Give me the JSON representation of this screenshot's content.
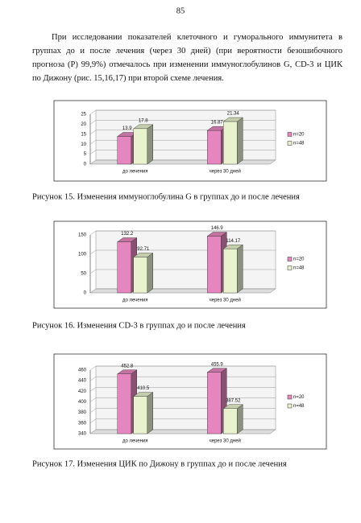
{
  "page_number": "85",
  "paragraph": "При исследовании показателей клеточного и гуморального иммунитета в группах до и после лечения (через 30 дней) (при вероятности безошибочного прогноза (P) 99,9%) отмечалось при изменении иммуноглобулинов G, CD-3 и ЦИК по Дижону (рис. 15,16,17) при второй схеме лечения.",
  "chart_data": [
    {
      "type": "bar",
      "caption": "Рисунок 15. Изменения иммуноглобулина G в группах до и после лечения",
      "categories": [
        "до лечения",
        "через 30 дней"
      ],
      "series": [
        {
          "name": "n=20",
          "color": "#e586be",
          "values": [
            13.9,
            16.87
          ]
        },
        {
          "name": "n=48",
          "color": "#e8f2cc",
          "values": [
            17.8,
            21.34
          ]
        }
      ],
      "ylim": [
        0,
        25
      ],
      "yticks": [
        0,
        5,
        10,
        15,
        20,
        25
      ],
      "grid": true
    },
    {
      "type": "bar",
      "caption": "Рисунок 16. Изменения CD-3 в группах до и после лечения",
      "categories": [
        "до лечения",
        "через 30 дней"
      ],
      "series": [
        {
          "name": "n=20",
          "color": "#e586be",
          "values": [
            132.2,
            146.9
          ]
        },
        {
          "name": "n=48",
          "color": "#e8f2cc",
          "values": [
            92.71,
            114.17
          ]
        }
      ],
      "ylim": [
        0,
        150
      ],
      "yticks": [
        0,
        50,
        100,
        150
      ],
      "grid": true
    },
    {
      "type": "bar",
      "caption": "Рисунок 17. Изменения ЦИК по Дижону в группах до и после лечения",
      "categories": [
        "до лечения",
        "через 30 дней"
      ],
      "series": [
        {
          "name": "n=20",
          "color": "#e586be",
          "values": [
            452.8,
            455.9
          ]
        },
        {
          "name": "n=48",
          "color": "#e8f2cc",
          "values": [
            410.5,
            387.52
          ]
        }
      ],
      "ylim": [
        340,
        460
      ],
      "yticks": [
        340,
        360,
        380,
        400,
        420,
        440,
        460
      ],
      "grid": true
    }
  ]
}
